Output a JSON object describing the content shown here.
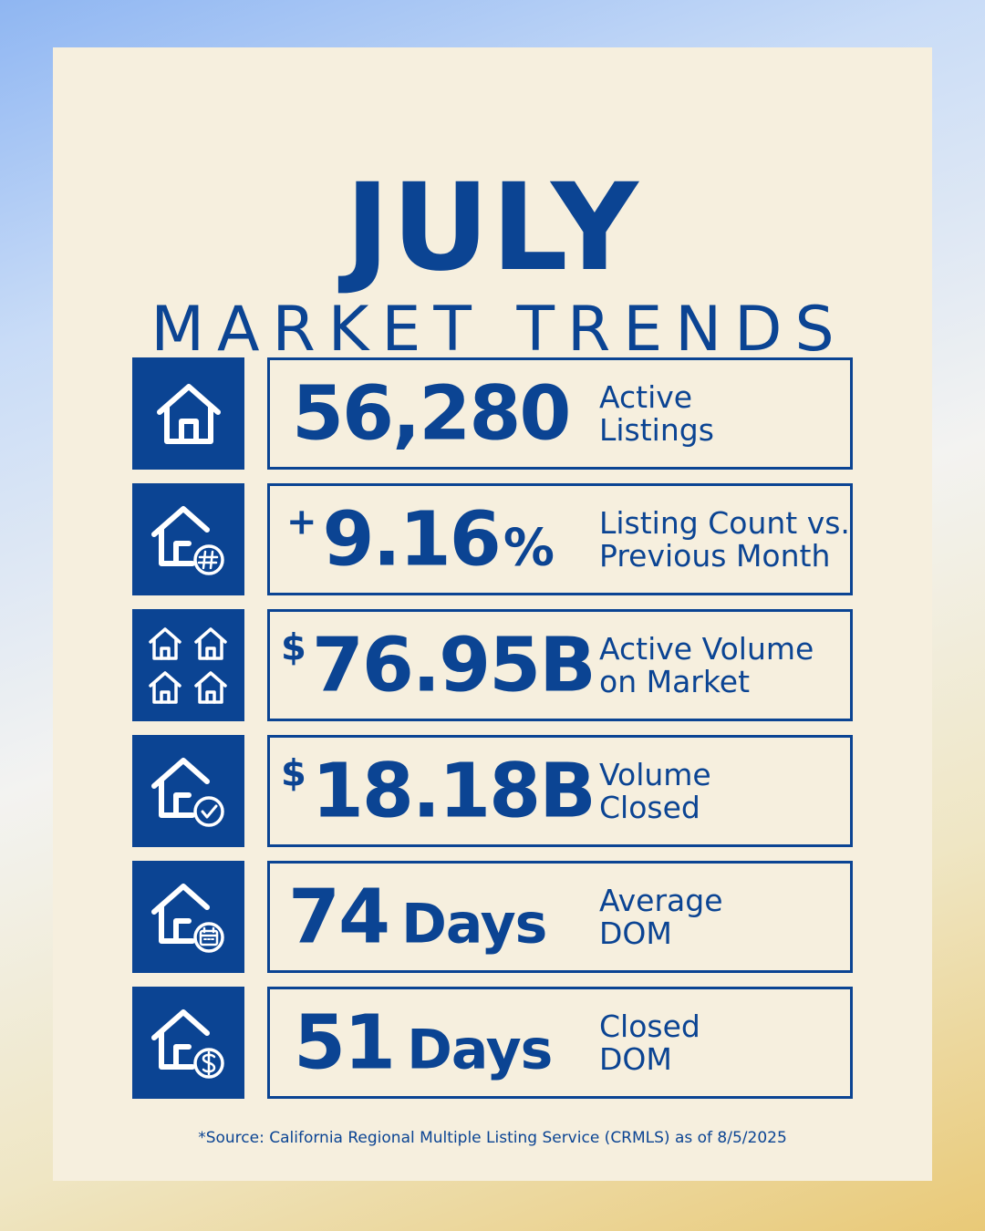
{
  "header": {
    "title": "JULY",
    "subtitle": "MARKET TRENDS"
  },
  "stats": [
    {
      "icon": "house-icon",
      "value": "56,280",
      "label_line1": "Active",
      "label_line2": "Listings"
    },
    {
      "icon": "house-hash-icon",
      "prefix": "+",
      "value": "9.16",
      "suffix": "%",
      "label_line1": "Listing Count vs.",
      "label_line2": "Previous Month"
    },
    {
      "icon": "four-houses-icon",
      "prefix": "$",
      "value": "76.95B",
      "label_line1": "Active Volume",
      "label_line2": "on Market"
    },
    {
      "icon": "house-check-icon",
      "prefix": "$",
      "value": "18.18B",
      "label_line1": "Volume",
      "label_line2": "Closed"
    },
    {
      "icon": "house-calendar-icon",
      "value": "74",
      "unit": "Days",
      "label_line1": "Average",
      "label_line2": "DOM"
    },
    {
      "icon": "house-dollar-icon",
      "value": "51",
      "unit": "Days",
      "label_line1": "Closed",
      "label_line2": "DOM"
    }
  ],
  "footer": {
    "source": "*Source: California Regional Multiple Listing Service (CRMLS) as of 8/5/2025"
  },
  "colors": {
    "primary": "#0b4493",
    "card": "#f6efde"
  }
}
